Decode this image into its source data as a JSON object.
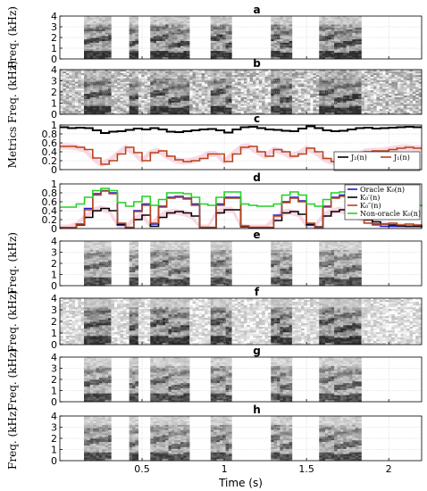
{
  "chart_data": [
    {
      "type": "heatmap",
      "title": "a",
      "ylabel": "Freq. (kHz)",
      "ylim": [
        0,
        4
      ],
      "yticks": [
        "0",
        "1",
        "2",
        "3",
        "4"
      ],
      "style": "clean",
      "grid": true,
      "xlim": [
        0,
        2.2
      ]
    },
    {
      "type": "heatmap",
      "title": "b",
      "ylabel": "Freq. (kHz)",
      "ylim": [
        0,
        4
      ],
      "yticks": [
        "0",
        "1",
        "2",
        "3",
        "4"
      ],
      "style": "noisy",
      "grid": true,
      "xlim": [
        0,
        2.2
      ]
    },
    {
      "type": "line",
      "title": "c",
      "ylabel": "Metrics",
      "ylim": [
        0,
        1.0
      ],
      "yticks": [
        "0",
        "0.2",
        "0.4",
        "0.6",
        "0.8",
        "1"
      ],
      "grid": true,
      "xlim": [
        0,
        2.2
      ],
      "legend_position": "bottom-right",
      "x": [
        0.0,
        0.05,
        0.1,
        0.15,
        0.2,
        0.25,
        0.3,
        0.35,
        0.4,
        0.45,
        0.5,
        0.55,
        0.6,
        0.65,
        0.7,
        0.75,
        0.8,
        0.85,
        0.9,
        0.95,
        1.0,
        1.05,
        1.1,
        1.15,
        1.2,
        1.25,
        1.3,
        1.35,
        1.4,
        1.45,
        1.5,
        1.55,
        1.6,
        1.65,
        1.7,
        1.75,
        1.8,
        1.85,
        1.9,
        1.95,
        2.0,
        2.05,
        2.1,
        2.15,
        2.2
      ],
      "series": [
        {
          "name": "J2(n)",
          "color": "#000000",
          "values": [
            0.95,
            0.93,
            0.94,
            0.93,
            0.88,
            0.82,
            0.85,
            0.86,
            0.89,
            0.92,
            0.9,
            0.93,
            0.9,
            0.85,
            0.84,
            0.86,
            0.88,
            0.9,
            0.91,
            0.88,
            0.83,
            0.9,
            0.95,
            0.96,
            0.93,
            0.9,
            0.89,
            0.87,
            0.86,
            0.92,
            0.97,
            0.93,
            0.88,
            0.86,
            0.87,
            0.9,
            0.93,
            0.94,
            0.92,
            0.93,
            0.94,
            0.95,
            0.96,
            0.95,
            0.95
          ]
        },
        {
          "name": "J1(n)",
          "color": "#b5441b",
          "values": [
            0.52,
            0.52,
            0.5,
            0.45,
            0.26,
            0.12,
            0.2,
            0.35,
            0.5,
            0.38,
            0.2,
            0.38,
            0.42,
            0.3,
            0.22,
            0.18,
            0.2,
            0.25,
            0.35,
            0.35,
            0.18,
            0.35,
            0.5,
            0.52,
            0.4,
            0.3,
            0.45,
            0.4,
            0.3,
            0.35,
            0.48,
            0.4,
            0.25,
            0.18,
            0.18,
            0.2,
            0.3,
            0.4,
            0.42,
            0.42,
            0.45,
            0.48,
            0.5,
            0.48,
            0.48
          ]
        }
      ]
    },
    {
      "type": "line",
      "title": "d",
      "ylim": [
        0,
        1.0
      ],
      "yticks": [
        "0",
        "0.2",
        "0.4",
        "0.6",
        "0.8",
        "1"
      ],
      "grid": true,
      "xlim": [
        0,
        2.2
      ],
      "legend_position": "top-right",
      "x": [
        0.0,
        0.05,
        0.1,
        0.15,
        0.2,
        0.25,
        0.3,
        0.35,
        0.4,
        0.45,
        0.5,
        0.55,
        0.6,
        0.65,
        0.7,
        0.75,
        0.8,
        0.85,
        0.9,
        0.95,
        1.0,
        1.05,
        1.1,
        1.15,
        1.2,
        1.25,
        1.3,
        1.35,
        1.4,
        1.45,
        1.5,
        1.55,
        1.6,
        1.65,
        1.7,
        1.75,
        1.8,
        1.85,
        1.9,
        1.95,
        2.0,
        2.05,
        2.1,
        2.15,
        2.2
      ],
      "series": [
        {
          "name": "Oracle K0(n)",
          "color": "#1a1ad6",
          "values": [
            0.02,
            0.02,
            0.1,
            0.45,
            0.78,
            0.85,
            0.8,
            0.1,
            0.02,
            0.4,
            0.55,
            0.1,
            0.5,
            0.7,
            0.72,
            0.68,
            0.55,
            0.02,
            0.02,
            0.55,
            0.7,
            0.7,
            0.05,
            0.02,
            0.02,
            0.02,
            0.3,
            0.6,
            0.7,
            0.62,
            0.1,
            0.02,
            0.5,
            0.7,
            0.75,
            0.68,
            0.4,
            0.2,
            0.1,
            0.05,
            0.05,
            0.05,
            0.05,
            0.05,
            0.02
          ]
        },
        {
          "name": "K0'(n)",
          "color": "#000000",
          "values": [
            0.02,
            0.02,
            0.08,
            0.25,
            0.4,
            0.45,
            0.4,
            0.08,
            0.02,
            0.2,
            0.3,
            0.05,
            0.25,
            0.35,
            0.38,
            0.35,
            0.28,
            0.02,
            0.02,
            0.35,
            0.42,
            0.42,
            0.04,
            0.02,
            0.02,
            0.02,
            0.18,
            0.35,
            0.38,
            0.32,
            0.08,
            0.04,
            0.28,
            0.38,
            0.42,
            0.35,
            0.28,
            0.2,
            0.15,
            0.1,
            0.08,
            0.06,
            0.05,
            0.05,
            0.03
          ]
        },
        {
          "name": "K0''(n)",
          "color": "#b5441b",
          "values": [
            0.02,
            0.02,
            0.1,
            0.42,
            0.75,
            0.84,
            0.78,
            0.12,
            0.03,
            0.38,
            0.52,
            0.12,
            0.48,
            0.68,
            0.7,
            0.66,
            0.52,
            0.03,
            0.03,
            0.52,
            0.68,
            0.68,
            0.06,
            0.03,
            0.03,
            0.03,
            0.28,
            0.58,
            0.68,
            0.6,
            0.12,
            0.03,
            0.48,
            0.68,
            0.72,
            0.66,
            0.38,
            0.12,
            0.08,
            0.1,
            0.12,
            0.08,
            0.1,
            0.08,
            0.05
          ]
        },
        {
          "name": "Non-oracle K0(n)",
          "color": "#22d122",
          "values": [
            0.48,
            0.48,
            0.55,
            0.7,
            0.85,
            0.9,
            0.85,
            0.58,
            0.5,
            0.6,
            0.72,
            0.52,
            0.65,
            0.8,
            0.8,
            0.78,
            0.7,
            0.55,
            0.52,
            0.7,
            0.82,
            0.82,
            0.55,
            0.52,
            0.5,
            0.5,
            0.55,
            0.75,
            0.82,
            0.75,
            0.55,
            0.5,
            0.65,
            0.8,
            0.82,
            0.78,
            0.62,
            0.58,
            0.55,
            0.55,
            0.52,
            0.55,
            0.55,
            0.52,
            0.5
          ]
        }
      ]
    },
    {
      "type": "heatmap",
      "title": "e",
      "ylabel": "Freq. (kHz)",
      "ylim": [
        0,
        4
      ],
      "yticks": [
        "0",
        "1",
        "2",
        "3",
        "4"
      ],
      "style": "enhanced",
      "grid": true,
      "xlim": [
        0,
        2.2
      ]
    },
    {
      "type": "heatmap",
      "title": "f",
      "ylabel": "Freq. (kHz)",
      "ylim": [
        0,
        4
      ],
      "yticks": [
        "0",
        "1",
        "2",
        "3",
        "4"
      ],
      "style": "semi-noisy",
      "grid": true,
      "xlim": [
        0,
        2.2
      ]
    },
    {
      "type": "heatmap",
      "title": "g",
      "ylabel": "Freq. (kHz)",
      "ylim": [
        0,
        4
      ],
      "yticks": [
        "0",
        "1",
        "2",
        "3",
        "4"
      ],
      "style": "enhanced",
      "grid": true,
      "xlim": [
        0,
        2.2
      ]
    },
    {
      "type": "heatmap",
      "title": "h",
      "ylabel": "Freq. (kHz)",
      "ylim": [
        0,
        4
      ],
      "yticks": [
        "0",
        "1",
        "2",
        "3",
        "4"
      ],
      "style": "enhanced",
      "grid": true,
      "xlim": [
        0,
        2.2
      ]
    }
  ],
  "x_axis": {
    "label": "Time (s)",
    "ticks": [
      0.5,
      1,
      1.5,
      2
    ],
    "tick_labels": [
      "0.5",
      "1",
      "1.5",
      "2"
    ]
  },
  "legends": {
    "c": [
      "J₂(n)",
      "J₁(n)"
    ],
    "d": [
      "Oracle K₀(n)",
      "K₀′(n)",
      "K₀″(n)",
      "Non-oracle K₀(n)"
    ]
  },
  "colors": {
    "black": "#000000",
    "brown": "#b5441b",
    "blue": "#1a1ad6",
    "green": "#22d122",
    "pink_band": "#f7c8d8"
  }
}
